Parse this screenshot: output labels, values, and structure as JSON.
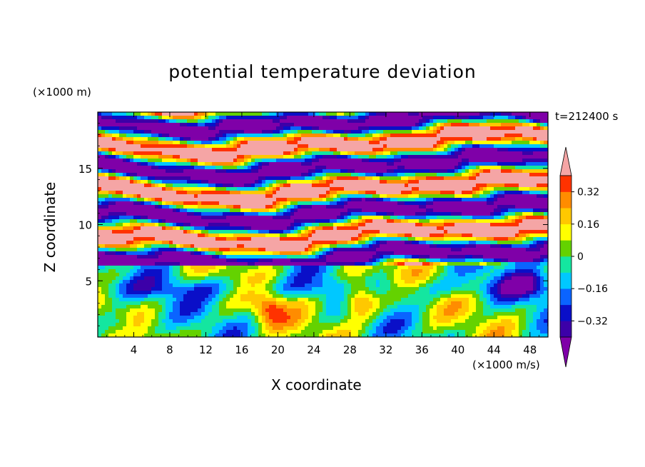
{
  "chart_data": {
    "type": "heatmap",
    "title": "potential temperature deviation",
    "xlabel": "X coordinate",
    "ylabel": "Z coordinate",
    "x_unit": "(×1000 m/s)",
    "z_unit": "(×1000 m)",
    "time_label": "t=212400 s",
    "xlim": [
      0,
      50
    ],
    "ylim": [
      0,
      20
    ],
    "x_ticks": [
      4,
      8,
      12,
      16,
      20,
      24,
      28,
      32,
      36,
      40,
      44,
      48
    ],
    "y_ticks": [
      5,
      10,
      15
    ],
    "colorbar": {
      "levels": [
        -0.4,
        -0.32,
        -0.24,
        -0.16,
        -0.08,
        0,
        0.08,
        0.16,
        0.24,
        0.32,
        0.4
      ],
      "tick_labels": [
        "0.32",
        "0.16",
        "0",
        "−0.16",
        "−0.32"
      ],
      "tick_values": [
        0.32,
        0.16,
        0,
        -0.16,
        -0.32
      ],
      "colors": [
        "#7f00a8",
        "#3c00a8",
        "#0a0fc8",
        "#0a64ff",
        "#00c8ff",
        "#14e6a0",
        "#64d200",
        "#ffff00",
        "#ffc800",
        "#ff8c00",
        "#ff3200",
        "#f5a5a5"
      ],
      "extend": "both"
    }
  }
}
